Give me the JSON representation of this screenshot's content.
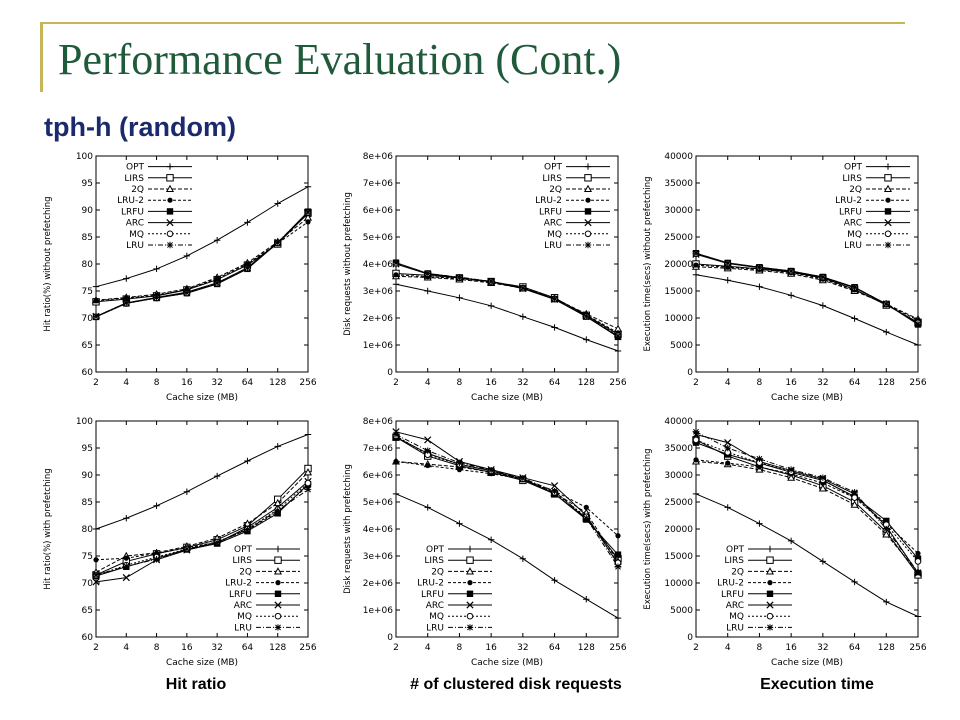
{
  "slide": {
    "title": "Performance Evaluation (Cont.)",
    "subtitle": "tph-h (random)"
  },
  "captions": {
    "hit_ratio": "Hit ratio",
    "disk_requests": "# of clustered disk requests",
    "execution_time": "Execution time"
  },
  "legend_markers": {
    "OPT": "plus",
    "LIRS": "square-open",
    "2Q": "triangle-open",
    "LRU-2": "circle-filled",
    "LRFU": "square-filled",
    "ARC": "cross",
    "MQ": "circle-open",
    "LRU": "star"
  },
  "chart_data": [
    {
      "type": "line",
      "xlabel": "Cache size (MB)",
      "ylabel": "Hit ratio(%) without prefetching",
      "categories": [
        "2",
        "4",
        "8",
        "16",
        "32",
        "64",
        "128",
        "256"
      ],
      "yticks": [
        "60",
        "65",
        "70",
        "75",
        "80",
        "85",
        "90",
        "95",
        "100"
      ],
      "ylim": [
        60,
        100
      ],
      "legend_position": "top-left",
      "series": [
        {
          "name": "OPT",
          "values": [
            75.8,
            77.3,
            79.1,
            81.5,
            84.4,
            87.7,
            91.2,
            94.3
          ]
        },
        {
          "name": "LIRS",
          "values": [
            73.0,
            73.5,
            74.1,
            75.2,
            77.1,
            79.8,
            83.7,
            89.5
          ]
        },
        {
          "name": "2Q",
          "values": [
            73.3,
            73.8,
            74.4,
            75.4,
            77.5,
            80.2,
            84.1,
            88.6
          ]
        },
        {
          "name": "LRU-2",
          "values": [
            73.2,
            73.7,
            74.2,
            75.3,
            77.3,
            80.0,
            83.8,
            87.8
          ]
        },
        {
          "name": "LRFU",
          "values": [
            70.2,
            72.7,
            73.7,
            74.6,
            76.3,
            79.1,
            83.9,
            89.7
          ]
        },
        {
          "name": "ARC",
          "values": [
            70.3,
            72.8,
            73.8,
            74.8,
            76.5,
            79.3,
            84.0,
            89.3
          ]
        },
        {
          "name": "MQ",
          "values": [
            70.2,
            72.7,
            73.7,
            74.6,
            76.4,
            79.2,
            83.9,
            89.5
          ]
        },
        {
          "name": "LRU",
          "values": [
            70.3,
            72.8,
            73.8,
            74.7,
            76.5,
            79.3,
            84.0,
            89.6
          ]
        }
      ]
    },
    {
      "type": "line",
      "xlabel": "Cache size (MB)",
      "ylabel": "Disk requests without prefetching",
      "categories": [
        "2",
        "4",
        "8",
        "16",
        "32",
        "64",
        "128",
        "256"
      ],
      "yticks": [
        "0",
        "1e+06",
        "2e+06",
        "3e+06",
        "4e+06",
        "5e+06",
        "6e+06",
        "7e+06",
        "8e+06"
      ],
      "ylim": [
        0,
        8000000
      ],
      "legend_position": "top-right",
      "series": [
        {
          "name": "OPT",
          "values": [
            3250000,
            3000000,
            2750000,
            2450000,
            2050000,
            1650000,
            1200000,
            780000
          ]
        },
        {
          "name": "LIRS",
          "values": [
            3650000,
            3580000,
            3480000,
            3350000,
            3150000,
            2750000,
            2100000,
            1400000
          ]
        },
        {
          "name": "2Q",
          "values": [
            3550000,
            3500000,
            3430000,
            3300000,
            3100000,
            2720000,
            2150000,
            1600000
          ]
        },
        {
          "name": "LRU-2",
          "values": [
            3600000,
            3530000,
            3460000,
            3330000,
            3120000,
            2740000,
            2120000,
            1450000
          ]
        },
        {
          "name": "LRFU",
          "values": [
            4050000,
            3650000,
            3500000,
            3350000,
            3100000,
            2700000,
            2050000,
            1300000
          ]
        },
        {
          "name": "ARC",
          "values": [
            4000000,
            3630000,
            3490000,
            3340000,
            3090000,
            2690000,
            2060000,
            1320000
          ]
        },
        {
          "name": "MQ",
          "values": [
            4020000,
            3640000,
            3500000,
            3350000,
            3100000,
            2700000,
            2060000,
            1350000
          ]
        },
        {
          "name": "LRU",
          "values": [
            4050000,
            3650000,
            3510000,
            3360000,
            3110000,
            2710000,
            2070000,
            1330000
          ]
        }
      ]
    },
    {
      "type": "line",
      "xlabel": "Cache size (MB)",
      "ylabel": "Execution time(secs) without prefetching",
      "categories": [
        "2",
        "4",
        "8",
        "16",
        "32",
        "64",
        "128",
        "256"
      ],
      "yticks": [
        "0",
        "5000",
        "10000",
        "15000",
        "20000",
        "25000",
        "30000",
        "35000",
        "40000"
      ],
      "ylim": [
        0,
        40000
      ],
      "legend_position": "top-right",
      "series": [
        {
          "name": "OPT",
          "values": [
            18000,
            17000,
            15800,
            14200,
            12300,
            9900,
            7400,
            5000
          ]
        },
        {
          "name": "LIRS",
          "values": [
            20000,
            19600,
            19100,
            18500,
            17400,
            15300,
            12400,
            9200
          ]
        },
        {
          "name": "2Q",
          "values": [
            19500,
            19200,
            18800,
            18200,
            17000,
            15000,
            12600,
            9800
          ]
        },
        {
          "name": "LRU-2",
          "values": [
            19800,
            19400,
            19000,
            18400,
            17200,
            15200,
            12500,
            9600
          ]
        },
        {
          "name": "LRFU",
          "values": [
            22000,
            20200,
            19400,
            18700,
            17600,
            15700,
            12600,
            8800
          ]
        },
        {
          "name": "ARC",
          "values": [
            21800,
            20100,
            19300,
            18600,
            17500,
            15600,
            12600,
            9000
          ]
        },
        {
          "name": "MQ",
          "values": [
            21900,
            20150,
            19350,
            18650,
            17550,
            15650,
            12600,
            9100
          ]
        },
        {
          "name": "LRU",
          "values": [
            22000,
            20200,
            19400,
            18700,
            17600,
            15700,
            12600,
            8900
          ]
        }
      ]
    },
    {
      "type": "line",
      "xlabel": "Cache size (MB)",
      "ylabel": "Hit ratio(%) with prefetching",
      "categories": [
        "2",
        "4",
        "8",
        "16",
        "32",
        "64",
        "128",
        "256"
      ],
      "yticks": [
        "60",
        "65",
        "70",
        "75",
        "80",
        "85",
        "90",
        "95",
        "100"
      ],
      "ylim": [
        60,
        100
      ],
      "legend_position": "bottom-right",
      "series": [
        {
          "name": "OPT",
          "values": [
            80.0,
            82.0,
            84.3,
            86.9,
            89.8,
            92.6,
            95.3,
            97.5
          ]
        },
        {
          "name": "LIRS",
          "values": [
            71.5,
            74.0,
            75.4,
            76.6,
            78.0,
            80.6,
            85.5,
            91.2
          ]
        },
        {
          "name": "2Q",
          "values": [
            72.0,
            75.0,
            75.6,
            76.8,
            78.3,
            81.0,
            84.8,
            90.5
          ]
        },
        {
          "name": "LRU-2",
          "values": [
            74.3,
            74.6,
            75.5,
            76.5,
            77.6,
            79.8,
            83.2,
            88.0
          ]
        },
        {
          "name": "LRFU",
          "values": [
            71.3,
            73.0,
            74.6,
            76.2,
            77.3,
            79.6,
            82.9,
            88.3
          ]
        },
        {
          "name": "ARC",
          "values": [
            70.2,
            71.0,
            74.3,
            76.1,
            77.4,
            80.3,
            84.0,
            88.8
          ]
        },
        {
          "name": "MQ",
          "values": [
            71.4,
            73.3,
            74.8,
            76.3,
            77.6,
            80.0,
            83.6,
            88.5
          ]
        },
        {
          "name": "LRU",
          "values": [
            71.5,
            73.1,
            74.4,
            76.3,
            77.5,
            79.9,
            83.4,
            87.3
          ]
        }
      ]
    },
    {
      "type": "line",
      "xlabel": "Cache size (MB)",
      "ylabel": "Disk requests with prefetching",
      "categories": [
        "2",
        "4",
        "8",
        "16",
        "32",
        "64",
        "128",
        "256"
      ],
      "yticks": [
        "0",
        "1e+06",
        "2e+06",
        "3e+06",
        "4e+06",
        "5e+06",
        "6e+06",
        "7e+06",
        "8e+06"
      ],
      "ylim": [
        0,
        8000000
      ],
      "legend_position": "bottom-left",
      "series": [
        {
          "name": "OPT",
          "values": [
            5300000,
            4800000,
            4200000,
            3600000,
            2900000,
            2100000,
            1400000,
            700000
          ]
        },
        {
          "name": "LIRS",
          "values": [
            7400000,
            6700000,
            6350000,
            6100000,
            5800000,
            5300000,
            4400000,
            2900000
          ]
        },
        {
          "name": "2Q",
          "values": [
            6500000,
            6400000,
            6300000,
            6100000,
            5850000,
            5350000,
            4600000,
            2800000
          ]
        },
        {
          "name": "LRU-2",
          "values": [
            6500000,
            6350000,
            6200000,
            6050000,
            5850000,
            5400000,
            4800000,
            3750000
          ]
        },
        {
          "name": "LRFU",
          "values": [
            7400000,
            6800000,
            6400000,
            6150000,
            5850000,
            5300000,
            4350000,
            3050000
          ]
        },
        {
          "name": "ARC",
          "values": [
            7600000,
            7300000,
            6500000,
            6200000,
            5900000,
            5600000,
            4500000,
            2700000
          ]
        },
        {
          "name": "MQ",
          "values": [
            7450000,
            6750000,
            6400000,
            6150000,
            5850000,
            5350000,
            4450000,
            2750000
          ]
        },
        {
          "name": "LRU",
          "values": [
            7500000,
            6900000,
            6450000,
            6180000,
            5880000,
            5400000,
            4400000,
            2600000
          ]
        }
      ]
    },
    {
      "type": "line",
      "xlabel": "Cache size (MB)",
      "ylabel": "Execution time(secs) with prefetching",
      "categories": [
        "2",
        "4",
        "8",
        "16",
        "32",
        "64",
        "128",
        "256"
      ],
      "yticks": [
        "0",
        "5000",
        "10000",
        "15000",
        "20000",
        "25000",
        "30000",
        "35000",
        "40000"
      ],
      "ylim": [
        0,
        40000
      ],
      "legend_position": "bottom-left",
      "series": [
        {
          "name": "OPT",
          "values": [
            26500,
            24000,
            21000,
            17800,
            14000,
            10200,
            6500,
            3800
          ]
        },
        {
          "name": "LIRS",
          "values": [
            36500,
            33500,
            31500,
            30000,
            28000,
            25000,
            19500,
            11500
          ]
        },
        {
          "name": "2Q",
          "values": [
            32500,
            32000,
            31000,
            29500,
            27500,
            24500,
            19000,
            12000
          ]
        },
        {
          "name": "LRU-2",
          "values": [
            32800,
            32200,
            31500,
            30200,
            28500,
            25800,
            21000,
            15500
          ]
        },
        {
          "name": "LRFU",
          "values": [
            36000,
            33800,
            32200,
            30500,
            29000,
            26000,
            21500,
            14500
          ]
        },
        {
          "name": "ARC",
          "values": [
            37500,
            36000,
            32500,
            30800,
            29300,
            26500,
            20500,
            11800
          ]
        },
        {
          "name": "MQ",
          "values": [
            36500,
            34200,
            32300,
            30600,
            29100,
            25800,
            20800,
            14000
          ]
        },
        {
          "name": "LRU",
          "values": [
            38000,
            35000,
            33000,
            31000,
            29500,
            26800,
            20000,
            12000
          ]
        }
      ]
    }
  ]
}
